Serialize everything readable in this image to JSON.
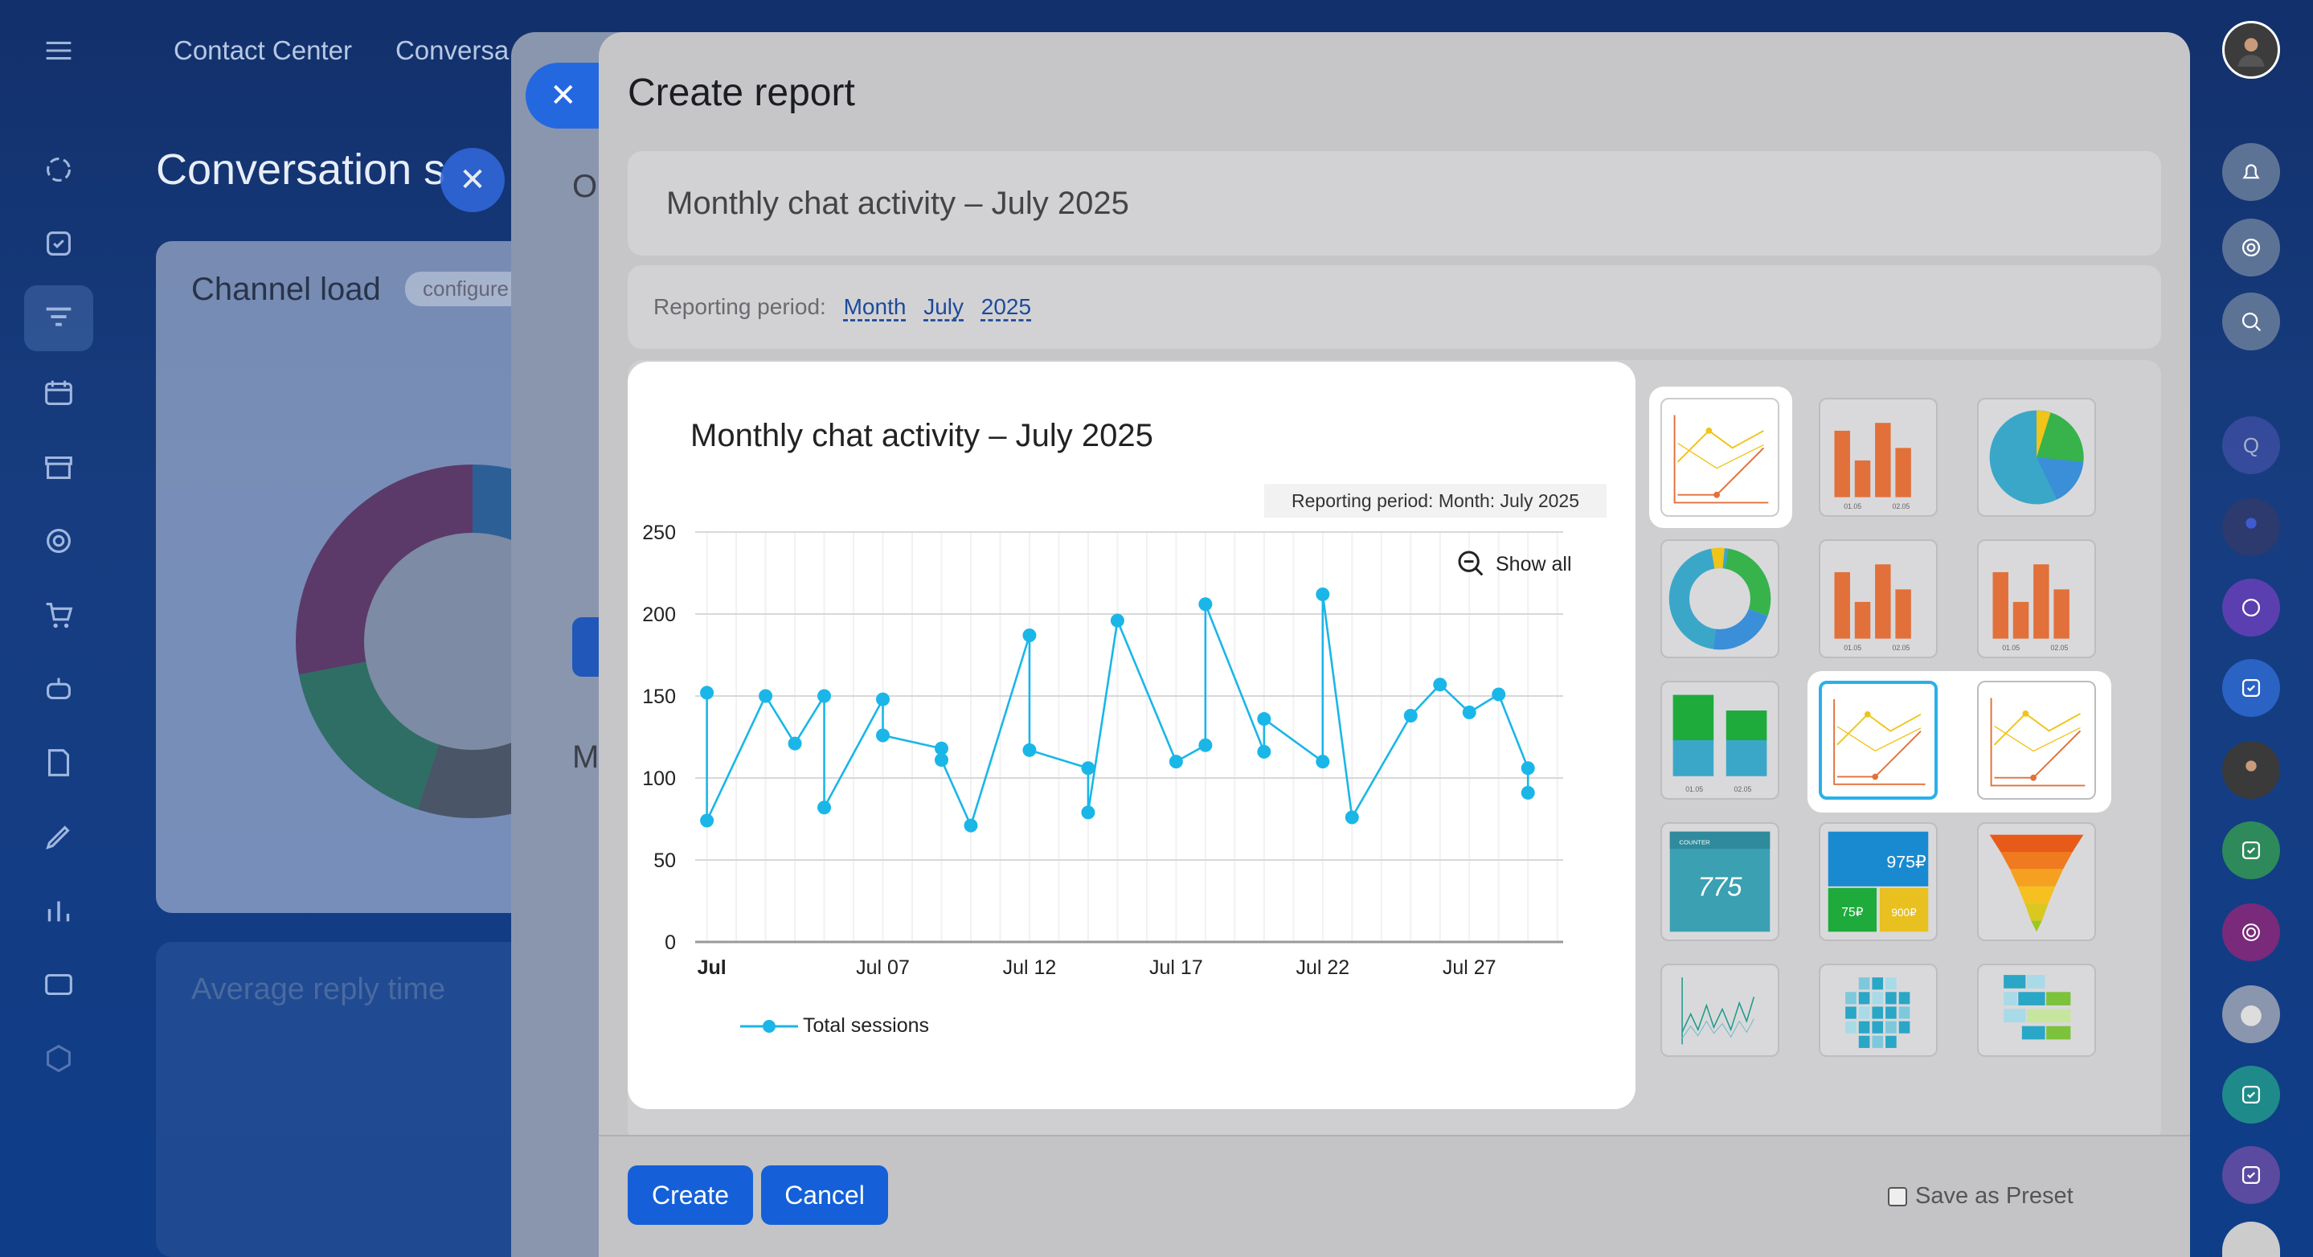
{
  "top_nav": {
    "contact_center": "Contact Center",
    "conversations": "Conversa"
  },
  "background": {
    "page_title": "Conversation s",
    "card_title": "Channel load",
    "card_tag": "configure",
    "card2_title": "Average reply time",
    "mid_panel_letters": [
      "Op",
      "M"
    ]
  },
  "dialog": {
    "title": "Create report",
    "report_name": "Monthly chat activity – July 2025",
    "period_label": "Reporting period:",
    "period_unit": "Month",
    "period_month": "July",
    "period_year": "2025"
  },
  "preview": {
    "title": "Monthly chat activity – July 2025",
    "period_chip": "Reporting period: Month: July 2025",
    "show_all": "Show all"
  },
  "chart_data": {
    "type": "line",
    "ylim": [
      0,
      250
    ],
    "yticks": [
      0,
      50,
      100,
      150,
      200,
      250
    ],
    "xtick_labels": [
      {
        "label": "Jul",
        "day": 1
      },
      {
        "label": "Jul 07",
        "day": 7
      },
      {
        "label": "Jul 12",
        "day": 12
      },
      {
        "label": "Jul 17",
        "day": 17
      },
      {
        "label": "Jul 22",
        "day": 22
      },
      {
        "label": "Jul 27",
        "day": 27
      }
    ],
    "series": [
      {
        "name": "Total sessions",
        "color": "#1ab6e8",
        "x": [
          1.0,
          1.0,
          3.0,
          4.0,
          5.0,
          5.0,
          7.0,
          7.0,
          9.0,
          9.0,
          10.0,
          12.0,
          12.0,
          14.0,
          14.0,
          15.0,
          17.0,
          18.0,
          18.0,
          20.0,
          20.0,
          22.0,
          22.0,
          23.0,
          25.0,
          26.0,
          27.0,
          28.0,
          29.0,
          29.0
        ],
        "values": [
          152,
          74,
          150,
          121,
          150,
          82,
          148,
          126,
          118,
          111,
          71,
          187,
          117,
          106,
          79,
          196,
          110,
          120,
          206,
          116,
          136,
          110,
          212,
          76,
          138,
          157,
          140,
          151,
          106,
          91
        ]
      }
    ],
    "legend": "bottom-left",
    "grid": true
  },
  "gallery": {
    "items": [
      {
        "name": "line-chart-thumb-1",
        "kind": "line"
      },
      {
        "name": "bar-chart-thumb-1",
        "kind": "bar",
        "labels": [
          "01.05",
          "02.05"
        ]
      },
      {
        "name": "pie-chart-thumb",
        "kind": "pie"
      },
      {
        "name": "donut-chart-thumb",
        "kind": "donut"
      },
      {
        "name": "bar-chart-thumb-2",
        "kind": "bar",
        "labels": [
          "01.05",
          "02.05"
        ]
      },
      {
        "name": "bar-chart-thumb-3",
        "kind": "bar",
        "labels": [
          "01.05",
          "02.05"
        ]
      },
      {
        "name": "stacked-bar-thumb",
        "kind": "stacked",
        "labels": [
          "01.05",
          "02.05"
        ]
      },
      {
        "name": "line-chart-thumb-2",
        "kind": "line"
      },
      {
        "name": "line-chart-thumb-3",
        "kind": "line"
      },
      {
        "name": "counter-thumb",
        "kind": "counter",
        "value": "775",
        "label": "COUNTER"
      },
      {
        "name": "tiles-thumb",
        "kind": "tiles",
        "values": [
          "975₽",
          "75₽",
          "900₽"
        ]
      },
      {
        "name": "funnel-thumb",
        "kind": "funnel"
      },
      {
        "name": "sparkline-thumb",
        "kind": "sparkline"
      },
      {
        "name": "grid-thumb",
        "kind": "grid"
      },
      {
        "name": "heatmap-thumb",
        "kind": "heatmap"
      }
    ]
  },
  "footer": {
    "create": "Create",
    "cancel": "Cancel",
    "save_preset": "Save as Preset"
  },
  "colors": {
    "accent": "#1560d8",
    "series": "#1ab6e8",
    "selection": "#2ab0e8"
  }
}
